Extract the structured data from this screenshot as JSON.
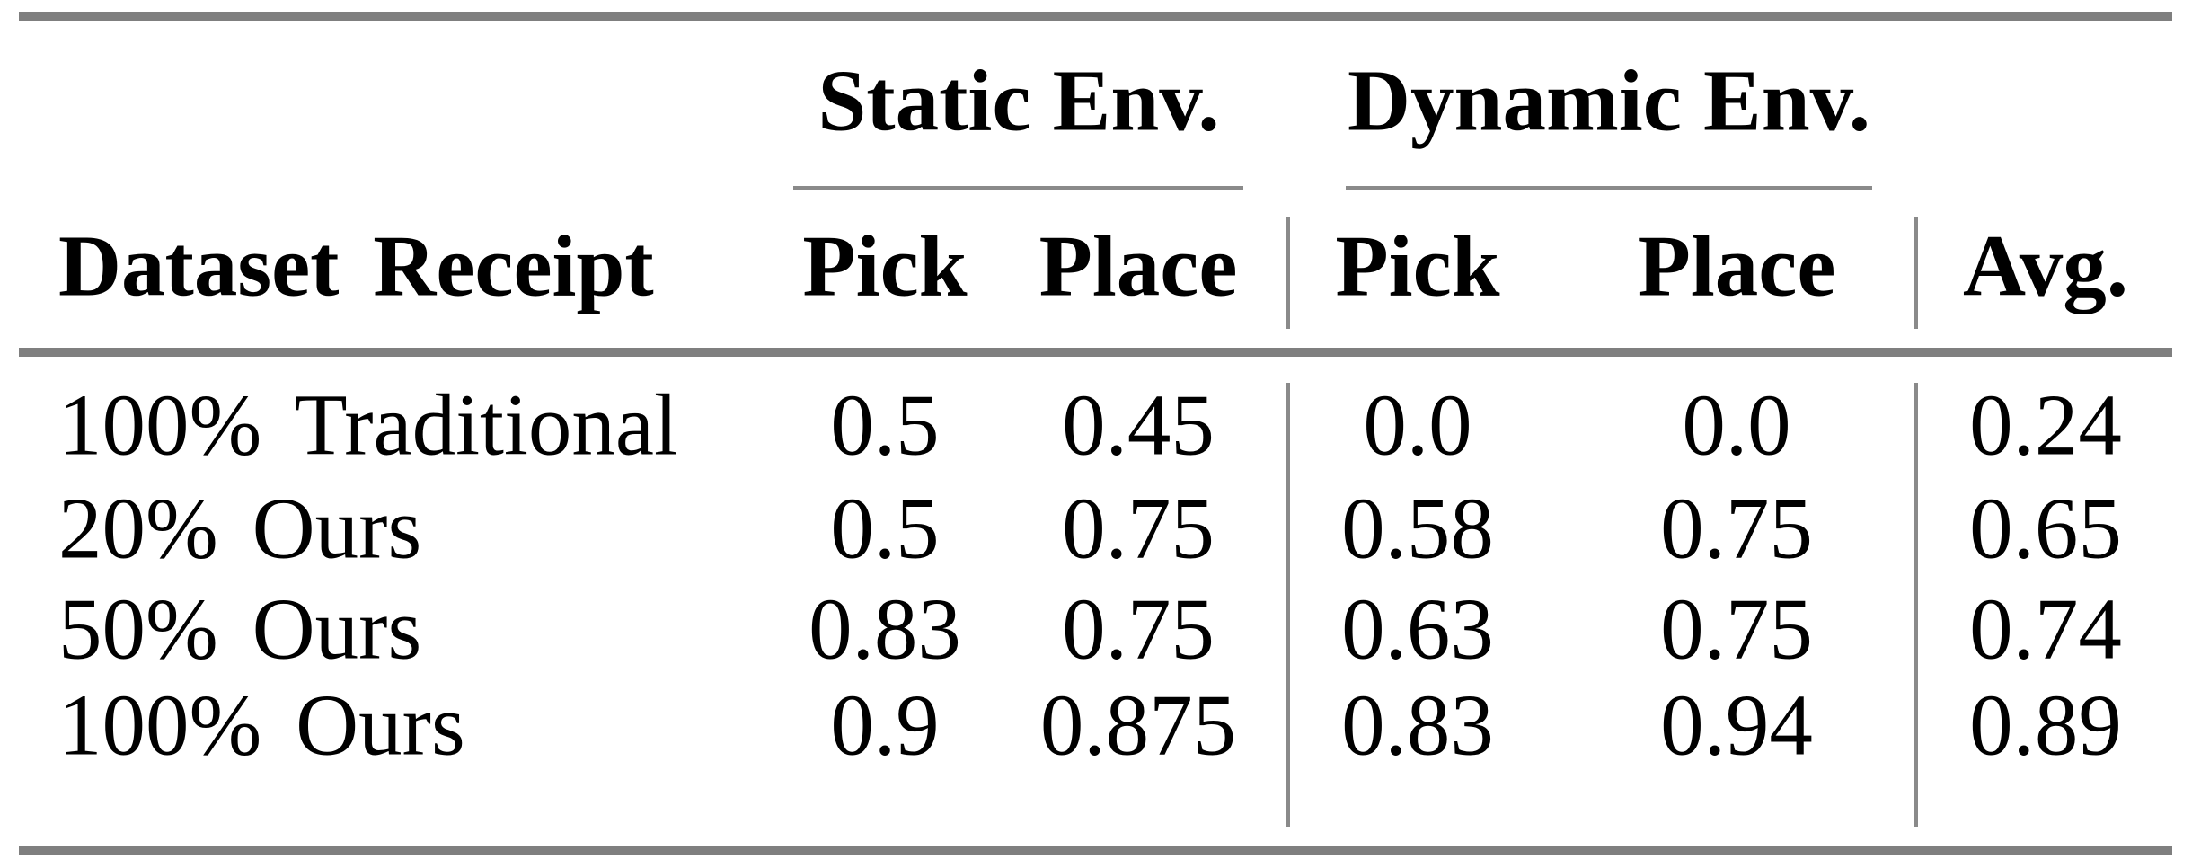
{
  "table": {
    "column_groups": [
      "Static Env.",
      "Dynamic Env."
    ],
    "header": {
      "row_header": "Dataset Receipt",
      "static_pick": "Pick",
      "static_place": "Place",
      "dynamic_pick": "Pick",
      "dynamic_place": "Place",
      "avg": "Avg."
    },
    "rows": [
      {
        "label": "100% Traditional",
        "cells": [
          "0.5",
          "0.45",
          "0.0",
          "0.0",
          "0.24"
        ]
      },
      {
        "label": "20% Ours",
        "cells": [
          "0.5",
          "0.75",
          "0.58",
          "0.75",
          "0.65"
        ]
      },
      {
        "label": "50% Ours",
        "cells": [
          "0.83",
          "0.75",
          "0.63",
          "0.75",
          "0.74"
        ]
      },
      {
        "label": "100% Ours",
        "cells": [
          "0.9",
          "0.875",
          "0.83",
          "0.94",
          "0.89"
        ]
      }
    ],
    "colors": {
      "text": "#000000",
      "rule_thick": "#7f7f7f",
      "rule_thin": "#8a8a8a"
    }
  }
}
